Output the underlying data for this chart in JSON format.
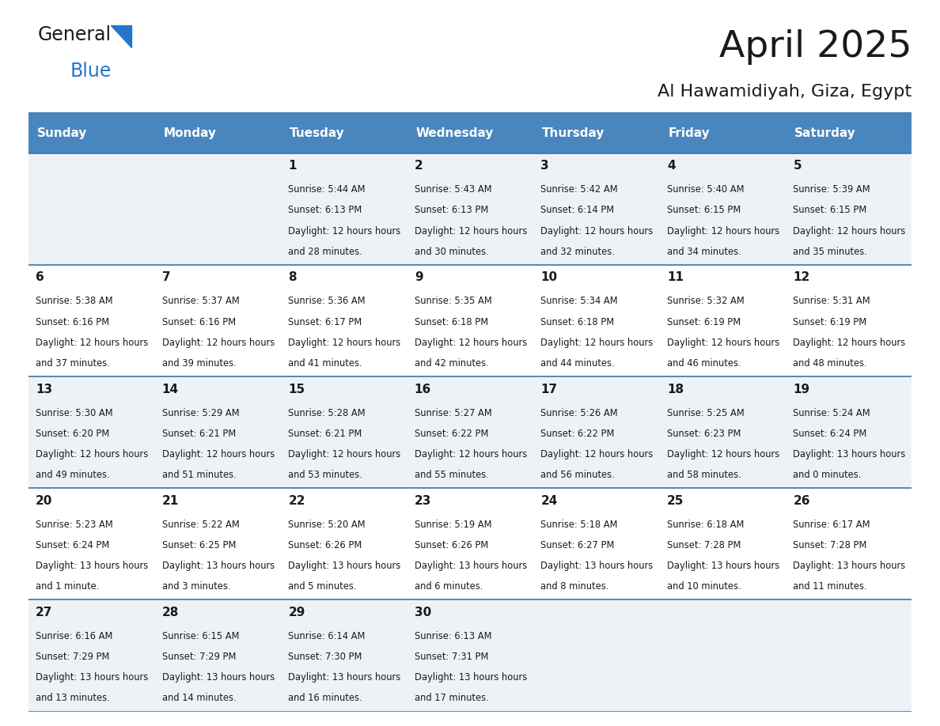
{
  "title": "April 2025",
  "subtitle": "Al Hawamidiyah, Giza, Egypt",
  "days_of_week": [
    "Sunday",
    "Monday",
    "Tuesday",
    "Wednesday",
    "Thursday",
    "Friday",
    "Saturday"
  ],
  "header_bg": "#4A86BE",
  "header_text": "#FFFFFF",
  "row_bg_odd": "#EEF2F7",
  "row_bg_even": "#FFFFFF",
  "border_color": "#3A76AE",
  "title_color": "#1a1a1a",
  "subtitle_color": "#1a1a1a",
  "cell_text_color": "#1a1a1a",
  "logo_black": "#1a1a1a",
  "logo_blue": "#2277CC",
  "logo_triangle": "#2277CC",
  "calendar": [
    [
      {
        "day": "",
        "sunrise": "",
        "sunset": "",
        "daylight": ""
      },
      {
        "day": "",
        "sunrise": "",
        "sunset": "",
        "daylight": ""
      },
      {
        "day": "1",
        "sunrise": "5:44 AM",
        "sunset": "6:13 PM",
        "daylight": "12 hours and 28 minutes."
      },
      {
        "day": "2",
        "sunrise": "5:43 AM",
        "sunset": "6:13 PM",
        "daylight": "12 hours and 30 minutes."
      },
      {
        "day": "3",
        "sunrise": "5:42 AM",
        "sunset": "6:14 PM",
        "daylight": "12 hours and 32 minutes."
      },
      {
        "day": "4",
        "sunrise": "5:40 AM",
        "sunset": "6:15 PM",
        "daylight": "12 hours and 34 minutes."
      },
      {
        "day": "5",
        "sunrise": "5:39 AM",
        "sunset": "6:15 PM",
        "daylight": "12 hours and 35 minutes."
      }
    ],
    [
      {
        "day": "6",
        "sunrise": "5:38 AM",
        "sunset": "6:16 PM",
        "daylight": "12 hours and 37 minutes."
      },
      {
        "day": "7",
        "sunrise": "5:37 AM",
        "sunset": "6:16 PM",
        "daylight": "12 hours and 39 minutes."
      },
      {
        "day": "8",
        "sunrise": "5:36 AM",
        "sunset": "6:17 PM",
        "daylight": "12 hours and 41 minutes."
      },
      {
        "day": "9",
        "sunrise": "5:35 AM",
        "sunset": "6:18 PM",
        "daylight": "12 hours and 42 minutes."
      },
      {
        "day": "10",
        "sunrise": "5:34 AM",
        "sunset": "6:18 PM",
        "daylight": "12 hours and 44 minutes."
      },
      {
        "day": "11",
        "sunrise": "5:32 AM",
        "sunset": "6:19 PM",
        "daylight": "12 hours and 46 minutes."
      },
      {
        "day": "12",
        "sunrise": "5:31 AM",
        "sunset": "6:19 PM",
        "daylight": "12 hours and 48 minutes."
      }
    ],
    [
      {
        "day": "13",
        "sunrise": "5:30 AM",
        "sunset": "6:20 PM",
        "daylight": "12 hours and 49 minutes."
      },
      {
        "day": "14",
        "sunrise": "5:29 AM",
        "sunset": "6:21 PM",
        "daylight": "12 hours and 51 minutes."
      },
      {
        "day": "15",
        "sunrise": "5:28 AM",
        "sunset": "6:21 PM",
        "daylight": "12 hours and 53 minutes."
      },
      {
        "day": "16",
        "sunrise": "5:27 AM",
        "sunset": "6:22 PM",
        "daylight": "12 hours and 55 minutes."
      },
      {
        "day": "17",
        "sunrise": "5:26 AM",
        "sunset": "6:22 PM",
        "daylight": "12 hours and 56 minutes."
      },
      {
        "day": "18",
        "sunrise": "5:25 AM",
        "sunset": "6:23 PM",
        "daylight": "12 hours and 58 minutes."
      },
      {
        "day": "19",
        "sunrise": "5:24 AM",
        "sunset": "6:24 PM",
        "daylight": "13 hours and 0 minutes."
      }
    ],
    [
      {
        "day": "20",
        "sunrise": "5:23 AM",
        "sunset": "6:24 PM",
        "daylight": "13 hours and 1 minute."
      },
      {
        "day": "21",
        "sunrise": "5:22 AM",
        "sunset": "6:25 PM",
        "daylight": "13 hours and 3 minutes."
      },
      {
        "day": "22",
        "sunrise": "5:20 AM",
        "sunset": "6:26 PM",
        "daylight": "13 hours and 5 minutes."
      },
      {
        "day": "23",
        "sunrise": "5:19 AM",
        "sunset": "6:26 PM",
        "daylight": "13 hours and 6 minutes."
      },
      {
        "day": "24",
        "sunrise": "5:18 AM",
        "sunset": "6:27 PM",
        "daylight": "13 hours and 8 minutes."
      },
      {
        "day": "25",
        "sunrise": "6:18 AM",
        "sunset": "7:28 PM",
        "daylight": "13 hours and 10 minutes."
      },
      {
        "day": "26",
        "sunrise": "6:17 AM",
        "sunset": "7:28 PM",
        "daylight": "13 hours and 11 minutes."
      }
    ],
    [
      {
        "day": "27",
        "sunrise": "6:16 AM",
        "sunset": "7:29 PM",
        "daylight": "13 hours and 13 minutes."
      },
      {
        "day": "28",
        "sunrise": "6:15 AM",
        "sunset": "7:29 PM",
        "daylight": "13 hours and 14 minutes."
      },
      {
        "day": "29",
        "sunrise": "6:14 AM",
        "sunset": "7:30 PM",
        "daylight": "13 hours and 16 minutes."
      },
      {
        "day": "30",
        "sunrise": "6:13 AM",
        "sunset": "7:31 PM",
        "daylight": "13 hours and 17 minutes."
      },
      {
        "day": "",
        "sunrise": "",
        "sunset": "",
        "daylight": ""
      },
      {
        "day": "",
        "sunrise": "",
        "sunset": "",
        "daylight": ""
      },
      {
        "day": "",
        "sunrise": "",
        "sunset": "",
        "daylight": ""
      }
    ]
  ]
}
